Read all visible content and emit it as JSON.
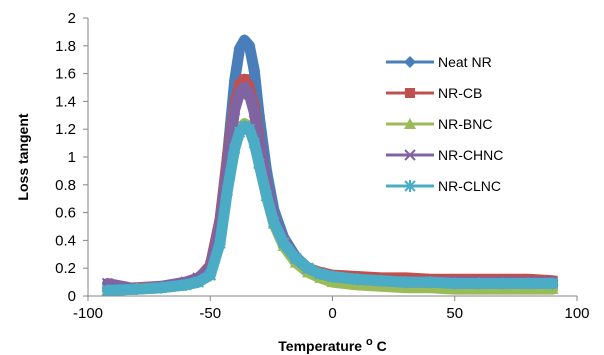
{
  "chart_data": {
    "type": "scatter",
    "xlabel": "Temperature",
    "xlabel_unit": "oC",
    "ylabel": "Loss tangent",
    "xlim": [
      -100,
      100
    ],
    "ylim": [
      0,
      2
    ],
    "x_ticks": [
      -100,
      -50,
      0,
      50,
      100
    ],
    "y_ticks": [
      0,
      0.2,
      0.4,
      0.6,
      0.8,
      1,
      1.2,
      1.4,
      1.6,
      1.8,
      2
    ],
    "x_tick_labels": [
      "-100",
      "-50",
      "0",
      "50",
      "100"
    ],
    "y_tick_labels": [
      "0",
      "0.2",
      "0.4",
      "0.6",
      "0.8",
      "1",
      "1.2",
      "1.4",
      "1.6",
      "1.8",
      "2"
    ],
    "grid": false,
    "legend_position": "right",
    "series": [
      {
        "name": "Neat NR",
        "color": "#4a7ebb",
        "marker": "diamond",
        "x": [
          -92,
          -80,
          -70,
          -60,
          -55,
          -50,
          -46,
          -43,
          -40,
          -38,
          -36,
          -34,
          -32,
          -30,
          -27,
          -24,
          -20,
          -15,
          -10,
          -5,
          0,
          10,
          20,
          30,
          40,
          50,
          60,
          70,
          80,
          90
        ],
        "y": [
          0.04,
          0.05,
          0.06,
          0.08,
          0.1,
          0.17,
          0.5,
          1.0,
          1.55,
          1.78,
          1.84,
          1.8,
          1.62,
          1.3,
          0.9,
          0.62,
          0.42,
          0.28,
          0.2,
          0.16,
          0.13,
          0.11,
          0.1,
          0.09,
          0.09,
          0.08,
          0.08,
          0.08,
          0.08,
          0.08
        ]
      },
      {
        "name": "NR-CB",
        "color": "#c0504d",
        "marker": "square",
        "x": [
          -92,
          -80,
          -70,
          -60,
          -55,
          -50,
          -46,
          -43,
          -40,
          -38,
          -36,
          -34,
          -32,
          -30,
          -27,
          -24,
          -20,
          -15,
          -10,
          -5,
          0,
          10,
          20,
          30,
          40,
          50,
          60,
          70,
          80,
          90
        ],
        "y": [
          0.05,
          0.06,
          0.07,
          0.09,
          0.12,
          0.22,
          0.55,
          1.0,
          1.38,
          1.52,
          1.56,
          1.5,
          1.36,
          1.12,
          0.8,
          0.56,
          0.38,
          0.26,
          0.2,
          0.17,
          0.15,
          0.14,
          0.13,
          0.13,
          0.12,
          0.12,
          0.12,
          0.12,
          0.12,
          0.11
        ]
      },
      {
        "name": "NR-BNC",
        "color": "#9bbb59",
        "marker": "triangle",
        "x": [
          -92,
          -80,
          -70,
          -60,
          -55,
          -50,
          -46,
          -43,
          -40,
          -38,
          -36,
          -34,
          -32,
          -30,
          -27,
          -24,
          -20,
          -15,
          -10,
          -5,
          0,
          10,
          20,
          30,
          40,
          50,
          60,
          70,
          80,
          90
        ],
        "y": [
          0.04,
          0.05,
          0.06,
          0.08,
          0.1,
          0.15,
          0.4,
          0.8,
          1.1,
          1.2,
          1.24,
          1.22,
          1.12,
          0.96,
          0.72,
          0.52,
          0.36,
          0.24,
          0.17,
          0.13,
          0.1,
          0.08,
          0.07,
          0.06,
          0.06,
          0.05,
          0.05,
          0.05,
          0.05,
          0.05
        ]
      },
      {
        "name": "NR-CHNC",
        "color": "#8064a2",
        "marker": "x",
        "x": [
          -92,
          -80,
          -70,
          -60,
          -55,
          -50,
          -46,
          -43,
          -40,
          -38,
          -36,
          -34,
          -32,
          -30,
          -27,
          -24,
          -20,
          -15,
          -10,
          -5,
          0,
          10,
          20,
          30,
          40,
          50,
          60,
          70,
          80,
          90
        ],
        "y": [
          0.09,
          0.05,
          0.07,
          0.1,
          0.13,
          0.2,
          0.52,
          0.95,
          1.34,
          1.46,
          1.5,
          1.45,
          1.32,
          1.1,
          0.8,
          0.56,
          0.4,
          0.27,
          0.2,
          0.16,
          0.14,
          0.12,
          0.11,
          0.1,
          0.1,
          0.1,
          0.1,
          0.1,
          0.1,
          0.1
        ]
      },
      {
        "name": "NR-CLNC",
        "color": "#4bacc6",
        "marker": "asterisk",
        "x": [
          -92,
          -80,
          -70,
          -60,
          -55,
          -50,
          -46,
          -43,
          -40,
          -38,
          -36,
          -34,
          -32,
          -30,
          -27,
          -24,
          -20,
          -15,
          -10,
          -5,
          0,
          10,
          20,
          30,
          40,
          50,
          60,
          70,
          80,
          90
        ],
        "y": [
          0.04,
          0.05,
          0.06,
          0.08,
          0.1,
          0.15,
          0.38,
          0.76,
          1.06,
          1.18,
          1.22,
          1.2,
          1.1,
          0.95,
          0.72,
          0.53,
          0.38,
          0.27,
          0.2,
          0.16,
          0.14,
          0.12,
          0.11,
          0.1,
          0.1,
          0.09,
          0.09,
          0.09,
          0.09,
          0.09
        ]
      }
    ]
  }
}
